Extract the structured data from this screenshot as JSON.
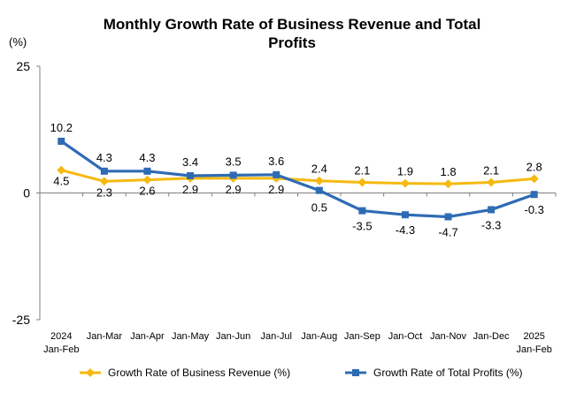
{
  "chart_data": {
    "type": "line",
    "title_lines": [
      "Monthly Growth Rate of Business Revenue and Total",
      "Profits"
    ],
    "ylabel": "(%)",
    "ylim": [
      -25,
      25
    ],
    "y_ticks": [
      "25",
      "0",
      "-25"
    ],
    "categories": [
      [
        "2024",
        "Jan-Feb"
      ],
      [
        "Jan-Mar"
      ],
      [
        "Jan-Apr"
      ],
      [
        "Jan-May"
      ],
      [
        "Jan-Jun"
      ],
      [
        "Jan-Jul"
      ],
      [
        "Jan-Aug"
      ],
      [
        "Jan-Sep"
      ],
      [
        "Jan-Oct"
      ],
      [
        "Jan-Nov"
      ],
      [
        "Jan-Dec"
      ],
      [
        "2025",
        "Jan-Feb"
      ]
    ],
    "series": [
      {
        "name": "Growth Rate of Business Revenue (%)",
        "color": "#F5B90F",
        "marker": "diamond",
        "values": [
          4.5,
          2.3,
          2.6,
          2.9,
          2.9,
          2.9,
          2.4,
          2.1,
          1.9,
          1.8,
          2.1,
          2.8
        ],
        "labels": [
          "4.5",
          "2.3",
          "2.6",
          "2.9",
          "2.9",
          "2.9",
          "2.4",
          "2.1",
          "1.9",
          "1.8",
          "2.1",
          "2.8"
        ]
      },
      {
        "name": "Growth Rate of Total Profits (%)",
        "color": "#2E6BB5",
        "marker": "square",
        "values": [
          10.2,
          4.3,
          4.3,
          3.4,
          3.5,
          3.6,
          0.5,
          -3.5,
          -4.3,
          -4.7,
          -3.3,
          -0.3
        ],
        "labels": [
          "10.2",
          "4.3",
          "4.3",
          "3.4",
          "3.5",
          "3.6",
          "0.5",
          "-3.5",
          "-4.3",
          "-4.7",
          "-3.3",
          "-0.3"
        ]
      }
    ],
    "legend_position": "bottom"
  }
}
